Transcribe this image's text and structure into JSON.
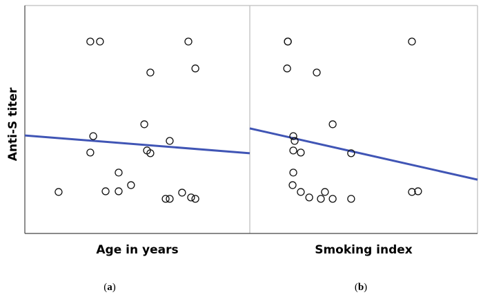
{
  "chart_data": [
    {
      "type": "scatter",
      "panel_label": "a",
      "xlabel": "Age in years",
      "ylabel": "Anti-S titer",
      "xlim": [
        0,
        100
      ],
      "ylim": [
        0,
        100
      ],
      "grid": false,
      "tick_labels_shown": false,
      "marker": "open-circle",
      "fit_line_color": "#4055b5",
      "points": [
        [
          15.0,
          18.2
        ],
        [
          29.1,
          84.2
        ],
        [
          33.4,
          84.2
        ],
        [
          72.7,
          84.2
        ],
        [
          75.8,
          72.4
        ],
        [
          55.8,
          70.6
        ],
        [
          53.1,
          47.9
        ],
        [
          30.4,
          42.7
        ],
        [
          64.4,
          40.6
        ],
        [
          29.1,
          35.5
        ],
        [
          54.3,
          36.4
        ],
        [
          55.8,
          35.2
        ],
        [
          41.7,
          26.7
        ],
        [
          47.2,
          21.2
        ],
        [
          35.9,
          18.5
        ],
        [
          41.7,
          18.5
        ],
        [
          62.6,
          15.2
        ],
        [
          64.4,
          15.2
        ],
        [
          69.9,
          17.9
        ],
        [
          73.9,
          15.8
        ],
        [
          75.8,
          15.2
        ]
      ],
      "fit_line": [
        [
          0,
          43.0
        ],
        [
          100,
          35.2
        ]
      ]
    },
    {
      "type": "scatter",
      "panel_label": "b",
      "xlabel": "Smoking index",
      "xlim": [
        0,
        100
      ],
      "ylim": [
        0,
        100
      ],
      "grid": false,
      "tick_labels_shown": false,
      "marker": "open-circle",
      "fit_line_color": "#4055b5",
      "points": [
        [
          16.7,
          84.2
        ],
        [
          16.7,
          84.2
        ],
        [
          71.2,
          84.2
        ],
        [
          16.4,
          72.4
        ],
        [
          29.4,
          70.6
        ],
        [
          36.4,
          47.9
        ],
        [
          19.1,
          42.7
        ],
        [
          19.7,
          40.6
        ],
        [
          19.1,
          36.4
        ],
        [
          22.4,
          35.5
        ],
        [
          44.5,
          35.2
        ],
        [
          19.1,
          26.7
        ],
        [
          18.8,
          21.2
        ],
        [
          22.4,
          18.2
        ],
        [
          26.1,
          15.8
        ],
        [
          31.2,
          15.2
        ],
        [
          33.0,
          18.2
        ],
        [
          36.4,
          15.2
        ],
        [
          44.5,
          15.2
        ],
        [
          71.2,
          18.2
        ],
        [
          73.9,
          18.5
        ]
      ],
      "fit_line": [
        [
          0,
          46.1
        ],
        [
          100,
          23.6
        ]
      ]
    }
  ],
  "captions": [
    "a",
    "b"
  ]
}
